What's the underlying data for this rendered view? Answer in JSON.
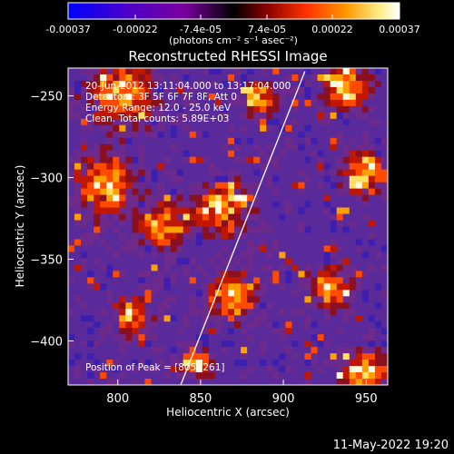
{
  "title": "Reconstructed RHESSI Image",
  "info_lines": [
    "20-Jun-2012 13:11:04.000 to 13:17:04.000",
    "Detectors: 3F 5F 6F 7F 8F, Att 0",
    "Energy Range: 12.0 - 25.0 keV",
    "Clean. Total counts: 5.89E+03"
  ],
  "peak_text": "Position of Peak = [805,-261]",
  "footer_date": "11-May-2022 19:20",
  "colorbar": {
    "tick_labels": [
      "-0.00037",
      "-0.00022",
      "-7.4e-05",
      "7.4e-05",
      "0.00022",
      "0.00037"
    ],
    "tick_values": [
      -0.00037,
      -0.00022,
      -7.4e-05,
      7.4e-05,
      0.00022,
      0.00037
    ],
    "range": [
      -0.00037,
      0.00037
    ],
    "units_label": "(photons cm⁻² s⁻¹ asec⁻²)",
    "colors": [
      "#0000ff",
      "#4b00c8",
      "#7a00a0",
      "#000000",
      "#8b0000",
      "#ff3300",
      "#ff9900",
      "#ffee88",
      "#ffffff"
    ]
  },
  "x_axis": {
    "label": "Heliocentric X (arcsec)",
    "range": [
      770,
      963
    ],
    "ticks": [
      800,
      850,
      900,
      950
    ],
    "tick_labels": [
      "800",
      "850",
      "900",
      "950"
    ]
  },
  "y_axis": {
    "label": "Heliocentric Y (arcsec)",
    "range": [
      -427,
      -233
    ],
    "ticks": [
      -250,
      -300,
      -350,
      -400
    ],
    "tick_labels": [
      "−250",
      "−300",
      "−350",
      "−400"
    ]
  },
  "limb_line": {
    "points": [
      [
        913,
        -235
      ],
      [
        838,
        -427
      ]
    ],
    "color": "#ffffff"
  },
  "map": {
    "grid_cols": 50,
    "grid_rows": 50,
    "seed": 7,
    "background_color": "#5a2a9a"
  }
}
